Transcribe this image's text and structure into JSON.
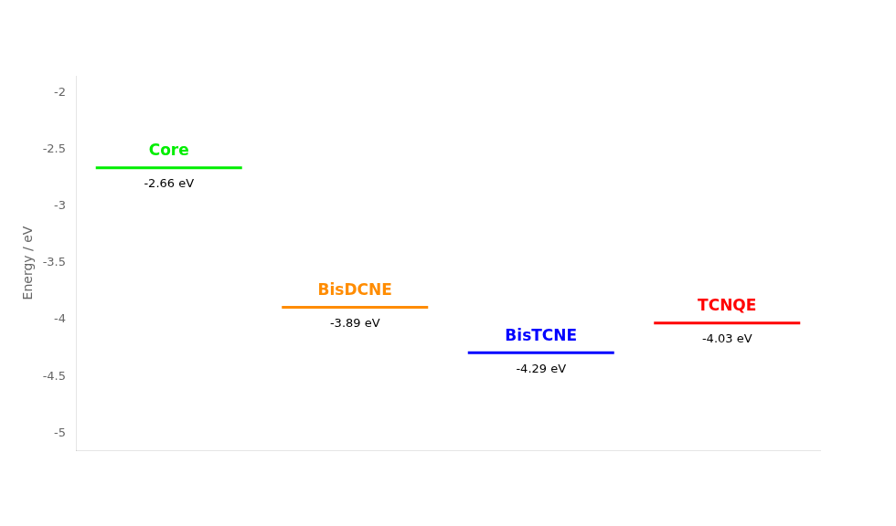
{
  "chart_data": {
    "type": "line",
    "marker": "line",
    "line_style": "none",
    "ylabel": "Energy / eV",
    "categories": [
      "Core",
      "BisDCNE",
      "BisTCNE",
      "TCNQE"
    ],
    "values": [
      -2.66,
      -3.89,
      -4.29,
      -4.03
    ],
    "value_labels": [
      "-2.66 eV",
      "-3.89 eV",
      "-4.29 eV",
      "-4.03 eV"
    ],
    "data_labels": true,
    "colors": [
      "#00ee00",
      "#ff8c00",
      "#0000ff",
      "#ff0000"
    ],
    "ylim": [
      -5.15,
      -1.85
    ],
    "yticks": [
      -5,
      -4.5,
      -4,
      -3.5,
      -3,
      -2.5,
      -2
    ],
    "grid": false,
    "tick_labels": "y"
  }
}
